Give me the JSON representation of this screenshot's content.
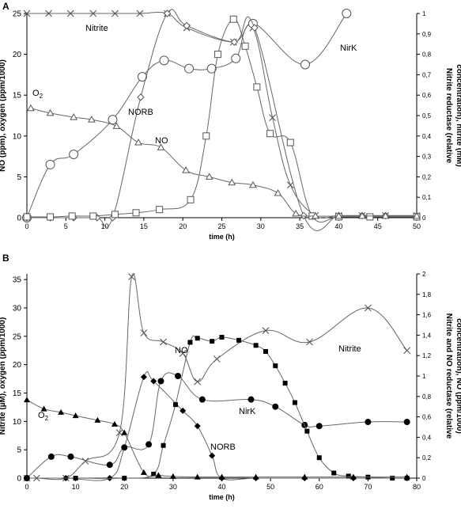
{
  "chart_data": [
    {
      "type": "line",
      "panel_label": "A",
      "xlabel": "time (h)",
      "ylabel": "NO (ppm), oxygen (ppm/1000)",
      "y2label_line1": "Nitrite reductase (relative",
      "y2label_line2": "concentration), nitrite (mM)",
      "xlim": [
        0,
        50
      ],
      "ylim": [
        0,
        25
      ],
      "y2lim": [
        0,
        1
      ],
      "xticks": [
        "0",
        "5",
        "10",
        "15",
        "20",
        "25",
        "30",
        "35",
        "40",
        "45",
        "50"
      ],
      "yticks": [
        "0",
        "5",
        "10",
        "15",
        "20",
        "25"
      ],
      "y2ticks": [
        "0",
        "0,1",
        "0,2",
        "0,3",
        "0,4",
        "0,5",
        "0,6",
        "0,7",
        "0,8",
        "0,9",
        "1"
      ],
      "grid": false,
      "series": [
        {
          "name": "Nitrite",
          "axis": "right",
          "marker": "x",
          "points": [
            [
              0,
              1
            ],
            [
              2.8,
              1
            ],
            [
              5.6,
              1
            ],
            [
              8.5,
              1
            ],
            [
              11.3,
              1
            ],
            [
              14.5,
              1
            ],
            [
              18,
              1
            ],
            [
              20.5,
              0.93
            ],
            [
              26.5,
              0.86
            ],
            [
              29,
              0.93
            ],
            [
              31.5,
              0.49
            ],
            [
              33.8,
              0.16
            ],
            [
              37,
              0.01
            ],
            [
              40,
              0.01
            ],
            [
              43,
              0.01
            ],
            [
              46,
              0.01
            ],
            [
              50,
              0.01
            ]
          ]
        },
        {
          "name": "NirK",
          "axis": "right",
          "marker": "circle",
          "points": [
            [
              0,
              0
            ],
            [
              3,
              0.26
            ],
            [
              6,
              0.31
            ],
            [
              11,
              0.48
            ],
            [
              14.8,
              0.69
            ],
            [
              17.6,
              0.77
            ],
            [
              20.8,
              0.73
            ],
            [
              23.7,
              0.73
            ],
            [
              26.8,
              0.78
            ],
            [
              29,
              0.95
            ],
            [
              35.7,
              0.75
            ],
            [
              41,
              1
            ]
          ]
        },
        {
          "name": "NORB",
          "axis": "right",
          "marker": "diamond",
          "points": [
            [
              0,
              0
            ],
            [
              3,
              0
            ],
            [
              6,
              0
            ],
            [
              9,
              0
            ],
            [
              11,
              0
            ],
            [
              14.6,
              0.59
            ],
            [
              18,
              1
            ],
            [
              20.5,
              0.94
            ],
            [
              26.6,
              0.86
            ],
            [
              29.2,
              0.93
            ],
            [
              35.5,
              0.01
            ],
            [
              40,
              0.01
            ],
            [
              43,
              0.01
            ],
            [
              46,
              0.01
            ],
            [
              50,
              0.01
            ]
          ]
        },
        {
          "name": "NO",
          "axis": "left",
          "marker": "square",
          "points": [
            [
              0,
              0.1
            ],
            [
              3,
              0.1
            ],
            [
              5.8,
              0.2
            ],
            [
              8.5,
              0.2
            ],
            [
              11.3,
              0.4
            ],
            [
              14,
              0.6
            ],
            [
              17,
              1
            ],
            [
              21,
              2.2
            ],
            [
              23,
              10
            ],
            [
              24.5,
              20
            ],
            [
              26.5,
              24.3
            ],
            [
              28,
              21
            ],
            [
              29.5,
              16
            ],
            [
              31.2,
              10.3
            ],
            [
              33.8,
              9.2
            ],
            [
              36.6,
              0.2
            ],
            [
              40,
              0.1
            ],
            [
              44,
              0.1
            ],
            [
              50,
              0.1
            ]
          ]
        },
        {
          "name": "O2",
          "axis": "left",
          "marker": "triangle",
          "points": [
            [
              0.5,
              13.4
            ],
            [
              3,
              12.8
            ],
            [
              6,
              12.3
            ],
            [
              8.3,
              12
            ],
            [
              11.5,
              11.2
            ],
            [
              14.3,
              9.2
            ],
            [
              17.2,
              8.6
            ],
            [
              20.4,
              5.8
            ],
            [
              23.4,
              5
            ],
            [
              26.3,
              4.3
            ],
            [
              29,
              4
            ],
            [
              32.2,
              3
            ],
            [
              34.5,
              0.5
            ],
            [
              37,
              0.2
            ],
            [
              40,
              0.2
            ],
            [
              43,
              0.2
            ],
            [
              46,
              0.2
            ],
            [
              50,
              0.2
            ]
          ]
        }
      ],
      "annotations": [
        "Nitrite",
        "NirK",
        "O2",
        "NORB",
        "NO"
      ]
    },
    {
      "type": "line",
      "panel_label": "B",
      "xlabel": "time (h)",
      "ylabel": "Nitrite (µM), oxygen (ppm/1000)",
      "y2label_line1": "Nitrite and NO reductase (relative",
      "y2label_line2": "concentration), NO (ppm/1000)",
      "xlim": [
        0,
        80
      ],
      "ylim": [
        0,
        36
      ],
      "y2lim": [
        0,
        2
      ],
      "xticks": [
        "0",
        "10",
        "20",
        "30",
        "40",
        "50",
        "60",
        "70",
        "80"
      ],
      "yticks": [
        "0",
        "5",
        "10",
        "15",
        "20",
        "25",
        "30",
        "35"
      ],
      "y2ticks": [
        "0",
        "0,2",
        "0,4",
        "0,6",
        "0,8",
        "1",
        "1,2",
        "1,4",
        "1,6",
        "1,8",
        "2"
      ],
      "grid": false,
      "series": [
        {
          "name": "Nitrite",
          "axis": "left",
          "marker": "x",
          "points": [
            [
              0,
              0
            ],
            [
              2,
              0
            ],
            [
              8,
              0
            ],
            [
              12,
              3
            ],
            [
              19,
              8
            ],
            [
              21.5,
              35.5
            ],
            [
              24,
              25.6
            ],
            [
              28,
              24
            ],
            [
              32,
              22
            ],
            [
              35,
              17
            ],
            [
              39,
              21
            ],
            [
              49,
              26
            ],
            [
              58,
              24
            ],
            [
              70,
              30
            ],
            [
              78,
              22.5
            ]
          ]
        },
        {
          "name": "NirK",
          "axis": "right",
          "marker": "circle",
          "points": [
            [
              0,
              0
            ],
            [
              5,
              0.21
            ],
            [
              9,
              0.21
            ],
            [
              17,
              0.13
            ],
            [
              20,
              0.3
            ],
            [
              25,
              0.33
            ],
            [
              27.5,
              0.95
            ],
            [
              31,
              1
            ],
            [
              36,
              0.77
            ],
            [
              46,
              0.77
            ],
            [
              51,
              0.7
            ],
            [
              57,
              0.52
            ],
            [
              60,
              0.51
            ],
            [
              70,
              0.55
            ],
            [
              78,
              0.55
            ]
          ]
        },
        {
          "name": "NORB",
          "axis": "right",
          "marker": "diamond",
          "points": [
            [
              0,
              0
            ],
            [
              8,
              0
            ],
            [
              17,
              0
            ],
            [
              20,
              0.3
            ],
            [
              24,
              0.99
            ],
            [
              26,
              0.95
            ],
            [
              32,
              0.66
            ],
            [
              35,
              0.51
            ],
            [
              38,
              0.22
            ],
            [
              40,
              0
            ],
            [
              47,
              0
            ],
            [
              57,
              0
            ],
            [
              67,
              0
            ],
            [
              78,
              0
            ]
          ]
        },
        {
          "name": "NO",
          "axis": "right",
          "marker": "square",
          "points": [
            [
              0,
              0
            ],
            [
              10,
              0
            ],
            [
              20,
              0
            ],
            [
              26,
              0.04
            ],
            [
              28,
              0.32
            ],
            [
              30.5,
              0.72
            ],
            [
              33.5,
              1.33
            ],
            [
              35,
              1.37
            ],
            [
              38,
              1.34
            ],
            [
              40,
              1.38
            ],
            [
              43.5,
              1.35
            ],
            [
              47,
              1.3
            ],
            [
              49,
              1.24
            ],
            [
              51,
              1.1
            ],
            [
              53,
              0.93
            ],
            [
              55,
              0.74
            ],
            [
              57.5,
              0.46
            ],
            [
              60,
              0.2
            ],
            [
              63,
              0.05
            ],
            [
              66,
              0.02
            ],
            [
              70,
              0.01
            ],
            [
              75,
              0
            ],
            [
              78,
              0
            ]
          ]
        },
        {
          "name": "O2",
          "axis": "left",
          "marker": "triangle",
          "points": [
            [
              0,
              13.8
            ],
            [
              3.5,
              12.2
            ],
            [
              7,
              11.6
            ],
            [
              10,
              11
            ],
            [
              14.5,
              10.2
            ],
            [
              18,
              9.5
            ],
            [
              20,
              8
            ],
            [
              24,
              1
            ],
            [
              27,
              0.5
            ],
            [
              30,
              0.3
            ],
            [
              35,
              0.2
            ],
            [
              40,
              0.2
            ],
            [
              47,
              0.2
            ],
            [
              57,
              0.2
            ],
            [
              67,
              0.2
            ],
            [
              78,
              0.2
            ]
          ]
        }
      ],
      "annotations": [
        "O2",
        "NO",
        "Nitrite",
        "NirK",
        "NORB"
      ]
    }
  ]
}
